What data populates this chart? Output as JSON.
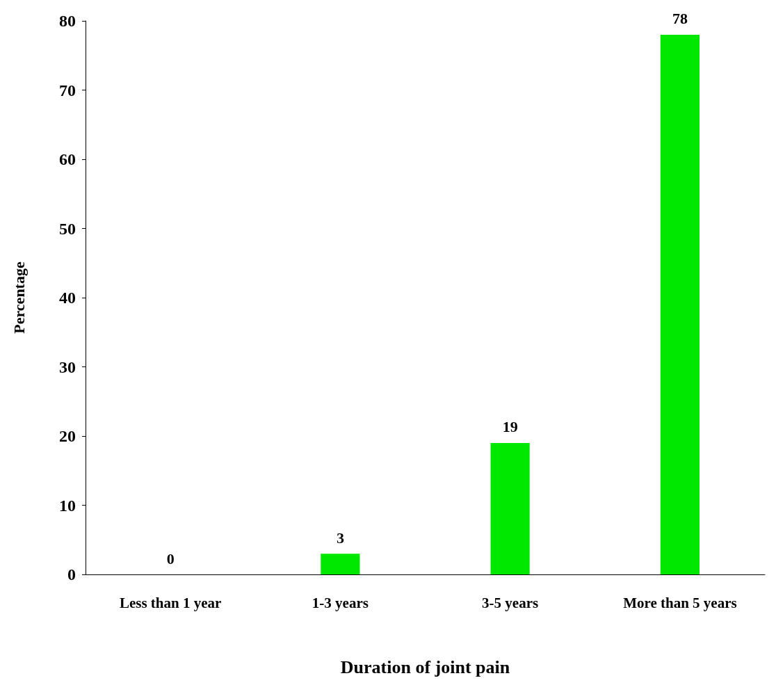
{
  "chart_data": {
    "type": "bar",
    "xlabel": "Duration of joint pain",
    "ylabel": "Percentage",
    "categories": [
      "Less than 1 year",
      "1-3 years",
      "3-5 years",
      "More than 5 years"
    ],
    "values": [
      0,
      3,
      19,
      78
    ],
    "color": "#00e800",
    "ylim": [
      0,
      80
    ],
    "yticks": [
      0,
      10,
      20,
      30,
      40,
      50,
      60,
      70,
      80
    ],
    "grid": false,
    "data_labels": true
  }
}
